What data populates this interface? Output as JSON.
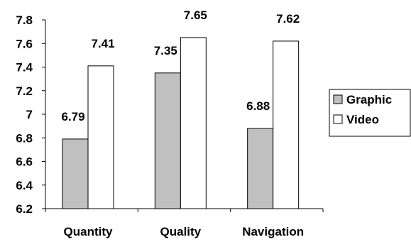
{
  "chart_data": {
    "type": "bar",
    "categories": [
      "Quantity",
      "Quality",
      "Navigation"
    ],
    "series": [
      {
        "name": "Graphic",
        "values": [
          6.79,
          7.35,
          6.88
        ],
        "color": "#c0c0c0"
      },
      {
        "name": "Video",
        "values": [
          7.41,
          7.65,
          7.62
        ],
        "color": "#ffffff"
      }
    ],
    "data_labels": [
      "6.79",
      "7.41",
      "7.35",
      "7.65",
      "6.88",
      "7.62"
    ],
    "ylim": [
      6.2,
      7.8
    ],
    "yticks": [
      6.2,
      6.4,
      6.6,
      6.8,
      7,
      7.2,
      7.4,
      7.6,
      7.8
    ],
    "ytick_labels": [
      "6.2",
      "6.4",
      "6.6",
      "6.8",
      "7",
      "7.2",
      "7.4",
      "7.6",
      "7.8"
    ],
    "title": "",
    "xlabel": "",
    "ylabel": "",
    "grid": false,
    "legend_position": "right"
  }
}
